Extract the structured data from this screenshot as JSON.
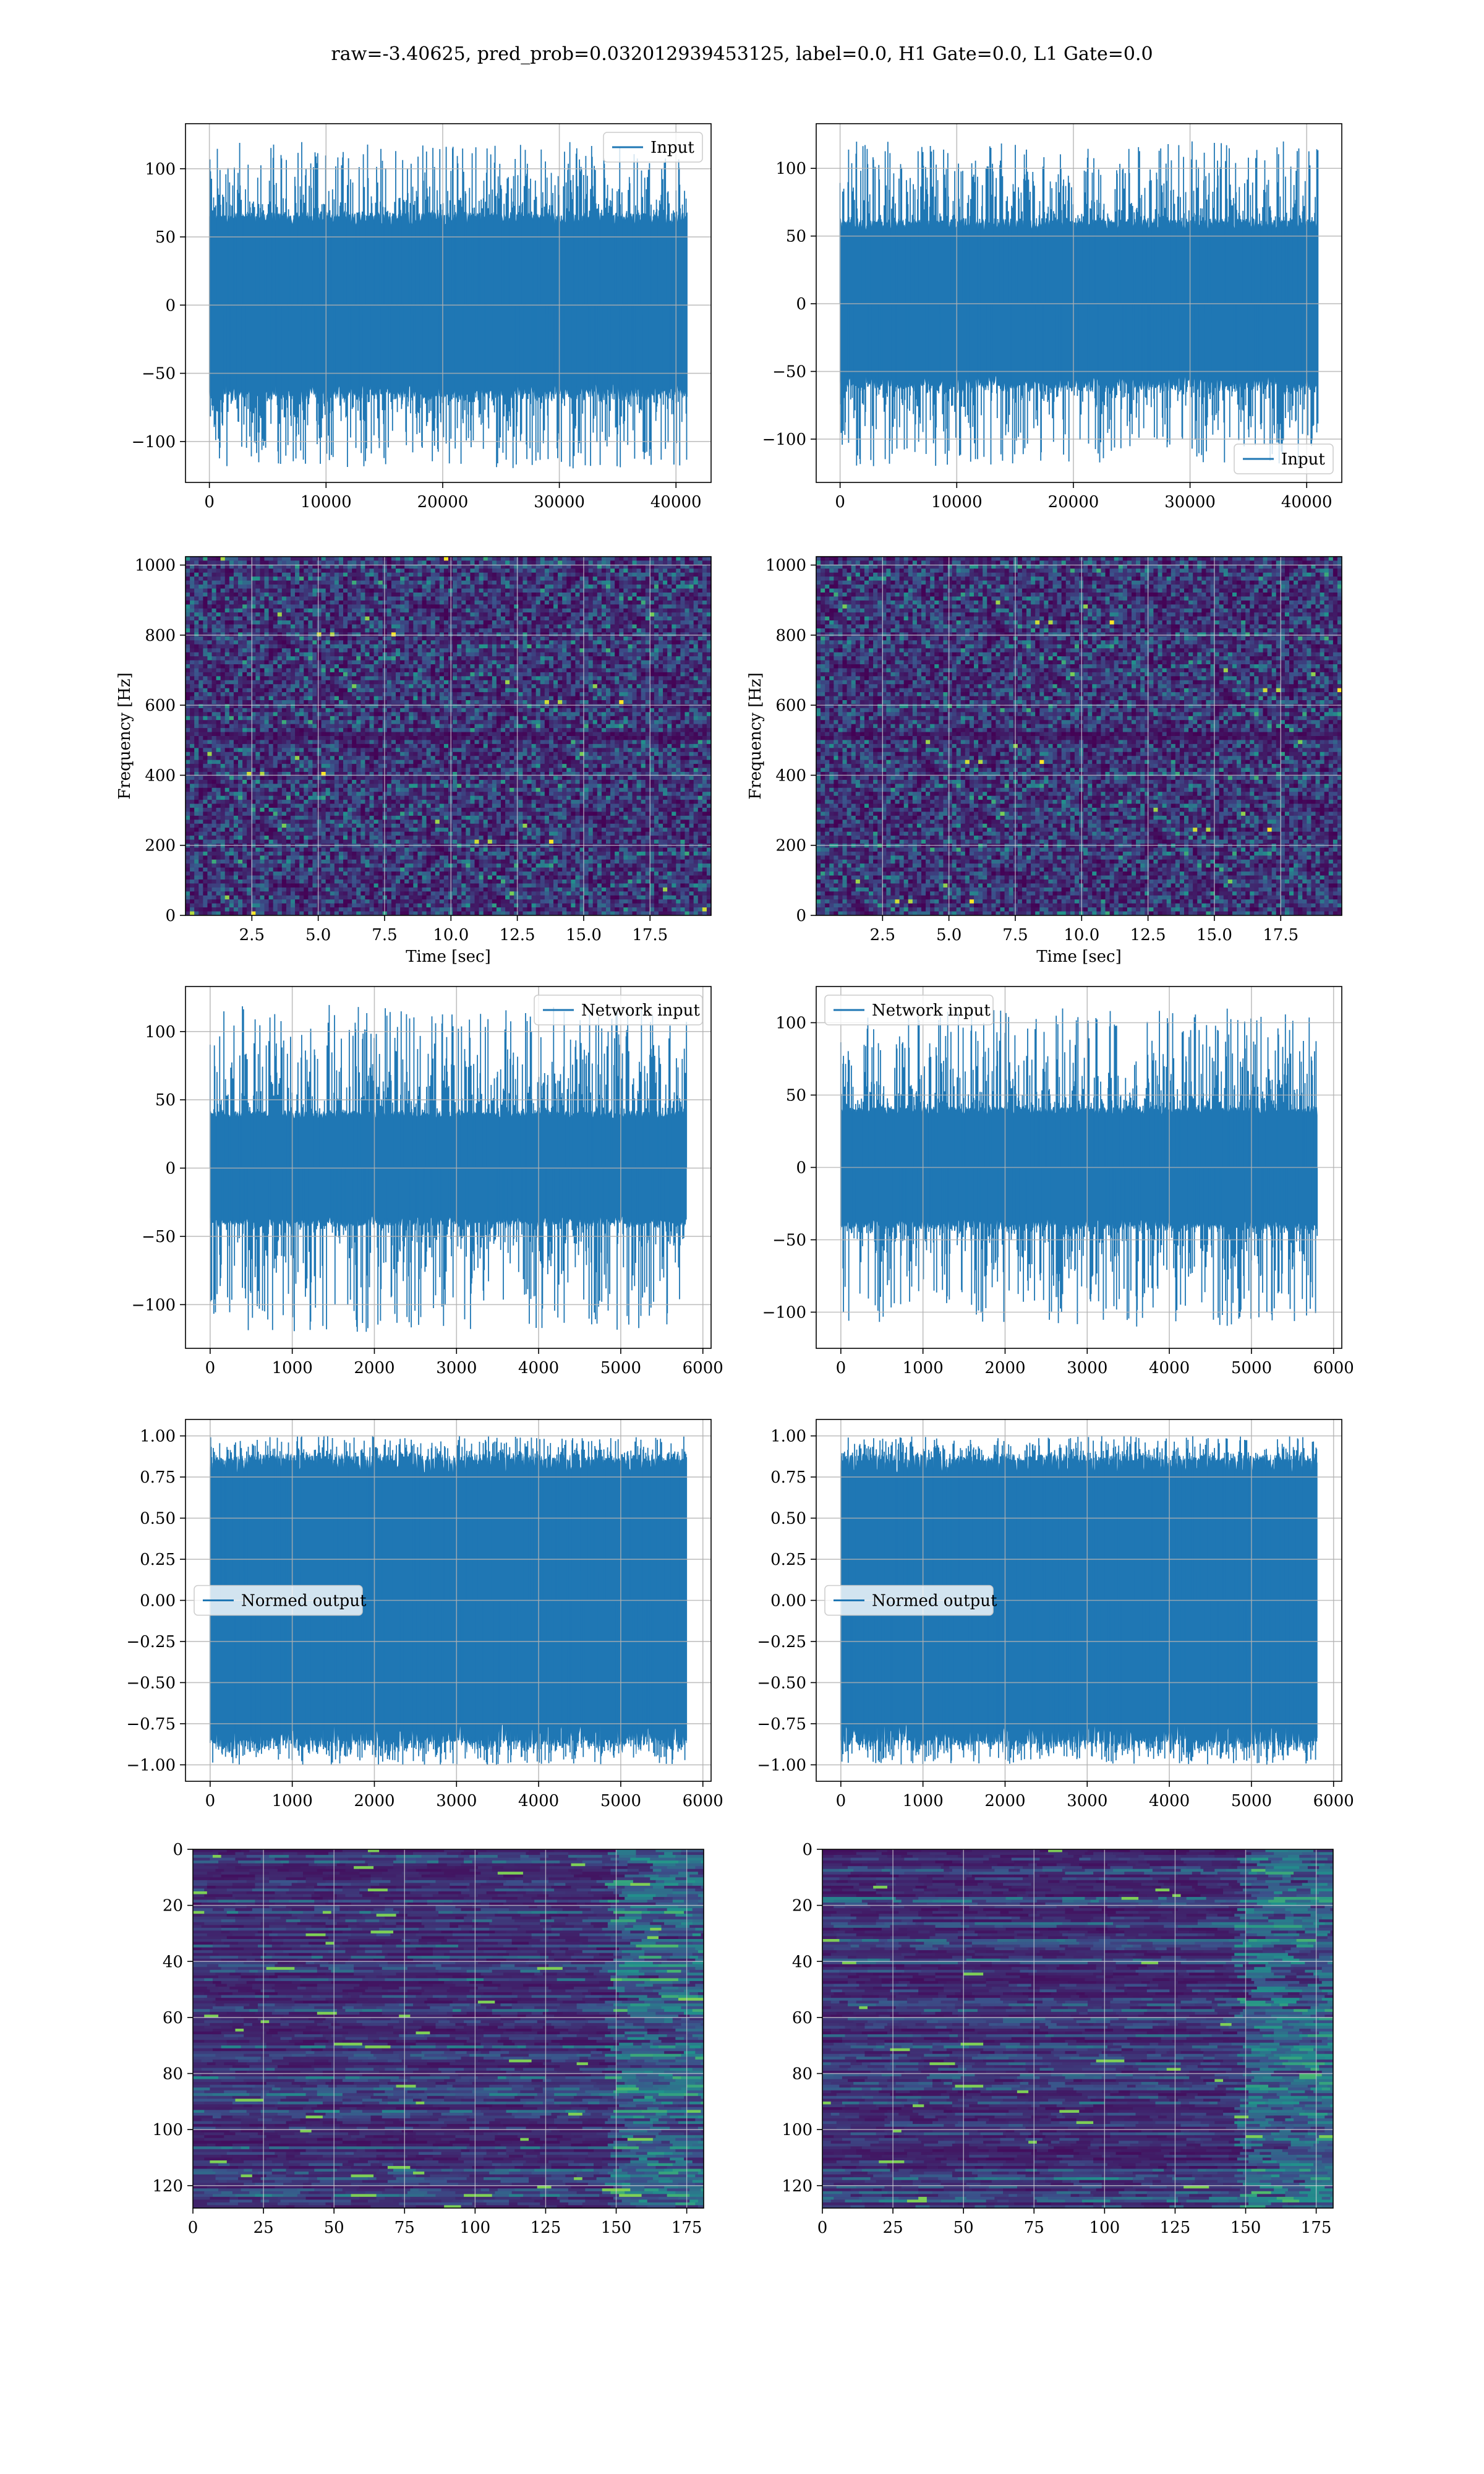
{
  "title": "raw=-3.40625, pred_prob=0.032012939453125, label=0.0, H1 Gate=0.0, L1 Gate=0.0",
  "colors": {
    "line": "#1f77b4",
    "grid": "#b0b0b0",
    "cmap": [
      "#440154",
      "#3b528b",
      "#21918c",
      "#5ec962",
      "#fde725"
    ]
  },
  "chart_data": [
    {
      "id": "input-h1",
      "type": "line",
      "series": [
        {
          "name": "Input",
          "amplitude": 65,
          "spike_max": 120,
          "x_end": 40960
        }
      ],
      "xlim": [
        -2048,
        43008
      ],
      "ylim": [
        -130,
        133
      ],
      "xticks": [
        "0",
        "10000",
        "20000",
        "30000",
        "40000"
      ],
      "yticks": [
        "100",
        "50",
        "0",
        "−50",
        "−100"
      ],
      "legend_loc": "upper right",
      "grid": true,
      "xlabel": "",
      "ylabel": ""
    },
    {
      "id": "input-l1",
      "type": "line",
      "series": [
        {
          "name": "Input",
          "amplitude": 60,
          "spike_max": 120,
          "x_end": 40960
        }
      ],
      "xlim": [
        -2048,
        43008
      ],
      "ylim": [
        -132,
        133
      ],
      "xticks": [
        "0",
        "10000",
        "20000",
        "30000",
        "40000"
      ],
      "yticks": [
        "100",
        "50",
        "0",
        "−50",
        "−100"
      ],
      "legend_loc": "lower right",
      "grid": true,
      "xlabel": "",
      "ylabel": ""
    },
    {
      "id": "spectrogram-h1",
      "type": "heatmap",
      "xlim": [
        0,
        19.8
      ],
      "ylim": [
        0,
        1024
      ],
      "xticks": [
        "2.5",
        "5.0",
        "7.5",
        "10.0",
        "12.5",
        "15.0",
        "17.5"
      ],
      "yticks": [
        "1000",
        "800",
        "600",
        "400",
        "200",
        "0"
      ],
      "xlabel": "Time [sec]",
      "ylabel": "Frequency [Hz]",
      "grid": true
    },
    {
      "id": "spectrogram-l1",
      "type": "heatmap",
      "xlim": [
        0,
        19.8
      ],
      "ylim": [
        0,
        1024
      ],
      "xticks": [
        "2.5",
        "5.0",
        "7.5",
        "10.0",
        "12.5",
        "15.0",
        "17.5"
      ],
      "yticks": [
        "1000",
        "800",
        "600",
        "400",
        "200",
        "0"
      ],
      "xlabel": "Time [sec]",
      "ylabel": "Frequency [Hz]",
      "grid": true
    },
    {
      "id": "network-input-h1",
      "type": "line",
      "series": [
        {
          "name": "Network input",
          "amplitude": 40,
          "spike_max": 120,
          "x_end": 5800
        }
      ],
      "xlim": [
        -300,
        6100
      ],
      "ylim": [
        -132,
        133
      ],
      "xticks": [
        "0",
        "1000",
        "2000",
        "3000",
        "4000",
        "5000",
        "6000"
      ],
      "yticks": [
        "100",
        "50",
        "0",
        "−50",
        "−100"
      ],
      "legend_loc": "upper right",
      "grid": true,
      "xlabel": "",
      "ylabel": ""
    },
    {
      "id": "network-input-l1",
      "type": "line",
      "series": [
        {
          "name": "Network input",
          "amplitude": 40,
          "spike_max": 110,
          "x_end": 5800
        }
      ],
      "xlim": [
        -300,
        6100
      ],
      "ylim": [
        -125,
        125
      ],
      "xticks": [
        "0",
        "1000",
        "2000",
        "3000",
        "4000",
        "5000",
        "6000"
      ],
      "yticks": [
        "100",
        "50",
        "0",
        "−50",
        "−100"
      ],
      "legend_loc": "upper left",
      "grid": true,
      "xlabel": "",
      "ylabel": ""
    },
    {
      "id": "normed-output-h1",
      "type": "line",
      "series": [
        {
          "name": "Normed output",
          "amplitude": 0.85,
          "spike_max": 1.0,
          "x_end": 5800
        }
      ],
      "xlim": [
        -300,
        6100
      ],
      "ylim": [
        -1.1,
        1.1
      ],
      "xticks": [
        "0",
        "1000",
        "2000",
        "3000",
        "4000",
        "5000",
        "6000"
      ],
      "yticks": [
        "1.00",
        "0.75",
        "0.50",
        "0.25",
        "0.00",
        "−0.25",
        "−0.50",
        "−0.75",
        "−1.00"
      ],
      "legend_loc": "center left",
      "grid": true,
      "xlabel": "",
      "ylabel": ""
    },
    {
      "id": "normed-output-l1",
      "type": "line",
      "series": [
        {
          "name": "Normed output",
          "amplitude": 0.85,
          "spike_max": 1.0,
          "x_end": 5800
        }
      ],
      "xlim": [
        -300,
        6100
      ],
      "ylim": [
        -1.1,
        1.1
      ],
      "xticks": [
        "0",
        "1000",
        "2000",
        "3000",
        "4000",
        "5000",
        "6000"
      ],
      "yticks": [
        "1.00",
        "0.75",
        "0.50",
        "0.25",
        "0.00",
        "−0.25",
        "−0.50",
        "−0.75",
        "−1.00"
      ],
      "legend_loc": "center left",
      "grid": true,
      "xlabel": "",
      "ylabel": ""
    },
    {
      "id": "features-h1",
      "type": "heatmap",
      "xlim": [
        0,
        181
      ],
      "ylim": [
        128,
        0
      ],
      "xticks": [
        "0",
        "25",
        "50",
        "75",
        "100",
        "125",
        "150",
        "175"
      ],
      "yticks": [
        "0",
        "20",
        "40",
        "60",
        "80",
        "100",
        "120"
      ],
      "xlabel": "",
      "ylabel": "",
      "grid": true
    },
    {
      "id": "features-l1",
      "type": "heatmap",
      "xlim": [
        0,
        181
      ],
      "ylim": [
        128,
        0
      ],
      "xticks": [
        "0",
        "25",
        "50",
        "75",
        "100",
        "125",
        "150",
        "175"
      ],
      "yticks": [
        "0",
        "20",
        "40",
        "60",
        "80",
        "100",
        "120"
      ],
      "xlabel": "",
      "ylabel": "",
      "grid": true
    }
  ]
}
